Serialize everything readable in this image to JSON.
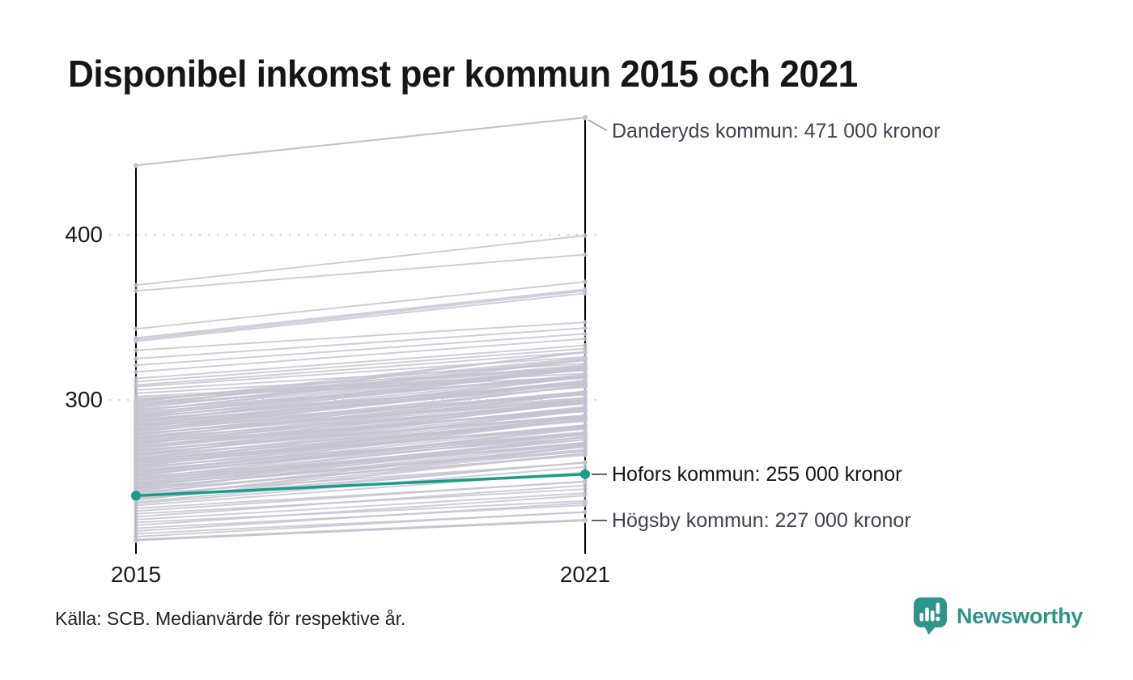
{
  "title": "Disponibel inkomst per kommun 2015 och 2021",
  "source": "Källa: SCB. Medianvärde för respektive år.",
  "branding": {
    "name": "Newsworthy",
    "color": "#2f948a",
    "icon": "speech-bubble-bar-chart"
  },
  "chart_data": {
    "type": "line",
    "subtype": "slopegraph",
    "x": [
      "2015",
      "2021"
    ],
    "yticks": [
      400,
      300
    ],
    "ylim": [
      210,
      480
    ],
    "grid": "dotted horizontal at yticks",
    "legend_position": "none",
    "colors": {
      "highlight": "#1a9c88",
      "line": "#c5c3d1",
      "grid": "#d7d7d7",
      "axis": "#000000",
      "annotation": "#3f4254",
      "annotation_highlight": "#161616",
      "leader_light": "#9a98a6",
      "leader_dark": "#3c3c3c"
    },
    "series": [
      {
        "name": "Danderyds kommun",
        "values": [
          442,
          471
        ],
        "role": "labeled"
      },
      {
        "name": "Högsby kommun",
        "values": [
          215,
          227
        ],
        "role": "labeled"
      },
      {
        "name": "Hofors kommun",
        "values": [
          242,
          255
        ],
        "role": "highlight"
      }
    ],
    "annotations": [
      {
        "series": "Danderyds kommun",
        "anchor_value": 471,
        "text": "Danderyds kommun: 471 000 kronor",
        "style": "plain"
      },
      {
        "series": "Hofors kommun",
        "anchor_value": 255,
        "text": "Hofors kommun: 255 000 kronor",
        "style": "highlight"
      },
      {
        "series": "Högsby kommun",
        "anchor_value": 227,
        "text": "Högsby kommun: 227 000 kronor",
        "style": "plain"
      }
    ],
    "background_series": [
      [
        369.5,
        399.5
      ],
      [
        366,
        388
      ],
      [
        343,
        371.5
      ],
      [
        337.5,
        367
      ],
      [
        336.5,
        366
      ],
      [
        335.5,
        364.5
      ],
      [
        330,
        347
      ],
      [
        325,
        343.5
      ],
      [
        321,
        340
      ],
      [
        317,
        337
      ],
      [
        313,
        333
      ],
      [
        311,
        331
      ],
      [
        309,
        329
      ],
      [
        308,
        326
      ],
      [
        306,
        322
      ],
      [
        304,
        319
      ],
      [
        302,
        316
      ],
      [
        301,
        314
      ],
      [
        238.2,
        262.2
      ],
      [
        239.5,
        267.5
      ],
      [
        240.1,
        262.1
      ],
      [
        240.8,
        271.8
      ],
      [
        241.6,
        267.6
      ],
      [
        242.9,
        261.9
      ],
      [
        243.3,
        272.3
      ],
      [
        244.0,
        269.0
      ],
      [
        244.7,
        277.7
      ],
      [
        245.5,
        266.5
      ],
      [
        246.2,
        273.2
      ],
      [
        246.9,
        269.9
      ],
      [
        247.4,
        277.4
      ],
      [
        248.1,
        274.1
      ],
      [
        248.8,
        268.8
      ],
      [
        249.6,
        277.6
      ],
      [
        250.2,
        274.2
      ],
      [
        250.9,
        279.9
      ],
      [
        251.5,
        273.5
      ],
      [
        252.3,
        283.3
      ],
      [
        252.8,
        278.8
      ],
      [
        253.6,
        272.6
      ],
      [
        254.1,
        283.1
      ],
      [
        254.9,
        279.9
      ],
      [
        255.4,
        288.4
      ],
      [
        256.2,
        277.2
      ],
      [
        256.8,
        283.8
      ],
      [
        257.5,
        280.5
      ],
      [
        258.1,
        288.1
      ],
      [
        258.7,
        284.7
      ],
      [
        259.4,
        279.4
      ],
      [
        260.0,
        288.0
      ],
      [
        260.6,
        284.6
      ],
      [
        261.3,
        289.3
      ],
      [
        261.9,
        283.9
      ],
      [
        262.5,
        293.5
      ],
      [
        263.2,
        289.2
      ],
      [
        263.8,
        282.8
      ],
      [
        264.5,
        293.5
      ],
      [
        265.1,
        290.1
      ],
      [
        265.8,
        298.8
      ],
      [
        266.4,
        287.4
      ],
      [
        267.0,
        294.0
      ],
      [
        267.7,
        290.7
      ],
      [
        268.3,
        298.3
      ],
      [
        269.0,
        295.0
      ],
      [
        269.6,
        289.6
      ],
      [
        270.2,
        298.2
      ],
      [
        270.9,
        294.9
      ],
      [
        271.5,
        299.5
      ],
      [
        272.1,
        294.1
      ],
      [
        272.8,
        303.8
      ],
      [
        273.4,
        299.4
      ],
      [
        274.0,
        293.0
      ],
      [
        274.7,
        303.7
      ],
      [
        275.3,
        300.3
      ],
      [
        275.9,
        308.9
      ],
      [
        276.6,
        297.6
      ],
      [
        277.2,
        304.2
      ],
      [
        277.8,
        300.8
      ],
      [
        278.5,
        308.5
      ],
      [
        279.1,
        305.1
      ],
      [
        279.7,
        299.7
      ],
      [
        280.4,
        308.4
      ],
      [
        281.0,
        305.0
      ],
      [
        281.6,
        310.6
      ],
      [
        282.3,
        304.3
      ],
      [
        282.9,
        313.9
      ],
      [
        283.5,
        309.5
      ],
      [
        284.2,
        303.2
      ],
      [
        284.8,
        313.8
      ],
      [
        285.4,
        310.4
      ],
      [
        286.1,
        319.1
      ],
      [
        286.7,
        307.7
      ],
      [
        287.3,
        314.3
      ],
      [
        288.0,
        311.0
      ],
      [
        288.6,
        318.6
      ],
      [
        289.2,
        315.2
      ],
      [
        289.9,
        309.9
      ],
      [
        290.5,
        318.5
      ],
      [
        291.1,
        315.1
      ],
      [
        291.8,
        319.8
      ],
      [
        292.4,
        314.4
      ],
      [
        293.0,
        324.0
      ],
      [
        293.7,
        319.7
      ],
      [
        294.3,
        313.3
      ],
      [
        295.0,
        324.0
      ],
      [
        295.6,
        320.6
      ],
      [
        296.2,
        329.2
      ],
      [
        296.9,
        317.9
      ],
      [
        297.5,
        324.5
      ],
      [
        298.1,
        321.1
      ],
      [
        298.8,
        328.8
      ],
      [
        299.4,
        325.4
      ],
      [
        300.0,
        320.0
      ],
      [
        246.5,
        271.5
      ],
      [
        249.0,
        276.0
      ],
      [
        251.9,
        275.9
      ],
      [
        254.5,
        282.5
      ],
      [
        257.0,
        279.0
      ],
      [
        259.8,
        289.8
      ],
      [
        262.0,
        288.0
      ],
      [
        264.2,
        287.2
      ],
      [
        266.9,
        295.9
      ],
      [
        269.3,
        290.3
      ],
      [
        271.8,
        298.8
      ],
      [
        274.4,
        298.4
      ],
      [
        276.9,
        304.9
      ],
      [
        279.4,
        301.4
      ],
      [
        281.9,
        311.9
      ],
      [
        284.5,
        310.5
      ],
      [
        287.6,
        310.6
      ],
      [
        290.2,
        319.2
      ],
      [
        215.5,
        227.5
      ],
      [
        217.2,
        232.2
      ],
      [
        219.0,
        232.0
      ],
      [
        220.6,
        237.6
      ],
      [
        222.3,
        236.3
      ],
      [
        224.1,
        242.1
      ],
      [
        225.8,
        238.8
      ],
      [
        227.5,
        243.5
      ],
      [
        229.2,
        248.2
      ],
      [
        231.0,
        246.0
      ],
      [
        232.7,
        250.7
      ],
      [
        234.4,
        250.4
      ],
      [
        236.1,
        256.1
      ],
      [
        237.3,
        259.3
      ]
    ]
  }
}
